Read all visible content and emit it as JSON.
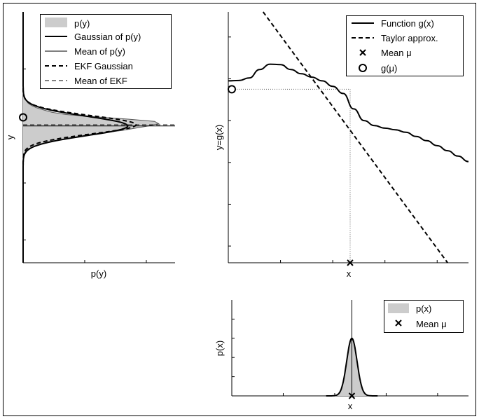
{
  "chart_data": [
    {
      "id": "py_panel",
      "type": "area",
      "xlabel": "p(y)",
      "ylabel": "y",
      "legend": {
        "placement": "top-right",
        "entries": [
          {
            "label": "p(y)",
            "style": "filled-gray"
          },
          {
            "label": "Gaussian of p(y)",
            "style": "thick-solid"
          },
          {
            "label": "Mean of p(y)",
            "style": "thin-solid"
          },
          {
            "label": "EKF Gaussian",
            "style": "thick-dashed"
          },
          {
            "label": "Mean of EKF",
            "style": "thin-dashed"
          }
        ]
      },
      "series": [
        {
          "name": "p(y)",
          "y": [
            -0.28,
            -0.24,
            -0.2,
            -0.16,
            -0.12,
            -0.08,
            -0.04,
            0.0,
            0.02,
            0.04,
            0.06,
            0.08,
            0.1,
            0.12,
            0.14,
            0.16,
            0.18,
            0.2,
            0.24,
            0.28,
            0.32
          ],
          "density": [
            0.0,
            0.03,
            0.12,
            0.46,
            0.93,
            1.55,
            2.4,
            3.05,
            3.3,
            3.2,
            2.55,
            1.75,
            1.05,
            0.7,
            0.5,
            0.32,
            0.2,
            0.12,
            0.05,
            0.02,
            0.0
          ]
        },
        {
          "name": "Gaussian of p(y)",
          "mean": 0.0,
          "sd": 0.085,
          "peak": 2.55
        },
        {
          "name": "Mean of p(y)",
          "y": 0.0
        },
        {
          "name": "EKF Gaussian",
          "mean": 0.01,
          "sd": 0.08,
          "peak": 2.75
        },
        {
          "name": "Mean of EKF",
          "y": 0.01
        }
      ],
      "marker": {
        "label": "g(μ)",
        "y": 0.075
      }
    },
    {
      "id": "g_panel",
      "type": "line",
      "xlabel": "x",
      "ylabel": "y=g(x)",
      "legend": {
        "placement": "top-right",
        "entries": [
          {
            "label": "Function g(x)",
            "style": "thick-solid"
          },
          {
            "label": "Taylor approx.",
            "style": "thick-dashed"
          },
          {
            "label": "Mean μ",
            "style": "x-marker"
          },
          {
            "label": "g(μ)",
            "style": "circle-marker"
          }
        ]
      },
      "series": [
        {
          "name": "Function g(x)",
          "x": [
            0.0,
            0.3,
            0.6,
            0.9,
            1.2,
            1.5,
            1.8,
            2.1,
            2.4,
            2.7,
            3.0,
            3.3,
            3.6,
            3.9,
            4.2,
            4.5,
            4.8,
            5.1,
            5.4,
            5.7,
            6.0,
            6.3,
            6.6,
            6.9
          ],
          "y": [
            1.45,
            1.46,
            1.52,
            1.72,
            1.85,
            1.84,
            1.72,
            1.62,
            1.54,
            1.45,
            1.32,
            1.15,
            0.78,
            0.5,
            0.38,
            0.32,
            0.28,
            0.22,
            0.12,
            0.02,
            -0.1,
            -0.22,
            -0.35,
            -0.48
          ]
        },
        {
          "name": "Taylor approx.",
          "x": [
            1.0,
            6.3
          ],
          "y": [
            3.1,
            -2.9
          ]
        }
      ],
      "mean_mu": {
        "x": 3.5,
        "g": 1.25
      },
      "xlim": [
        0.0,
        6.9
      ],
      "ylim": [
        -2.9,
        3.1
      ]
    },
    {
      "id": "px_panel",
      "type": "area",
      "xlabel": "x",
      "ylabel": "p(x)",
      "legend": {
        "placement": "top-right",
        "entries": [
          {
            "label": "p(x)",
            "style": "filled-gray"
          },
          {
            "label": "Mean μ",
            "style": "x-marker"
          }
        ]
      },
      "series": [
        {
          "name": "p(x)",
          "mean": 3.5,
          "sd": 0.15,
          "peak": 3.0
        }
      ],
      "xlim": [
        0.0,
        6.9
      ],
      "ylim": [
        0.0,
        5.0
      ]
    }
  ]
}
